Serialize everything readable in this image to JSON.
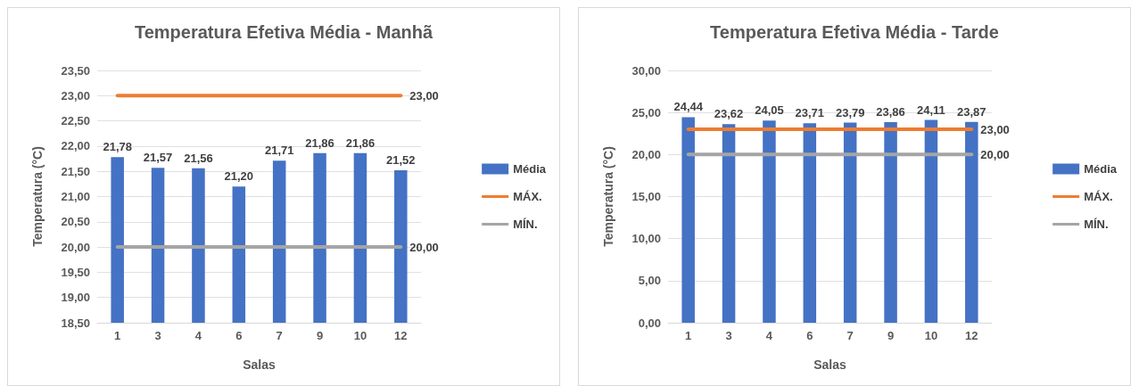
{
  "chart_data": [
    {
      "type": "bar",
      "title": "Temperatura Efetiva Média - Manhã",
      "xlabel": "Salas",
      "ylabel": "Temperatura (°C)",
      "categories": [
        "1",
        "3",
        "4",
        "6",
        "7",
        "9",
        "10",
        "12"
      ],
      "ylim": [
        18.5,
        23.5
      ],
      "yticks": [
        {
          "value": 18.5,
          "label": "18,50"
        },
        {
          "value": 19,
          "label": "19,00"
        },
        {
          "value": 19.5,
          "label": "19,50"
        },
        {
          "value": 20,
          "label": "20,00"
        },
        {
          "value": 20.5,
          "label": "20,50"
        },
        {
          "value": 21,
          "label": "21,00"
        },
        {
          "value": 21.5,
          "label": "21,50"
        },
        {
          "value": 22,
          "label": "22,00"
        },
        {
          "value": 22.5,
          "label": "22,50"
        },
        {
          "value": 23,
          "label": "23,00"
        },
        {
          "value": 23.5,
          "label": "23,50"
        }
      ],
      "grid": "y",
      "legend": "right",
      "series": [
        {
          "name": "Média",
          "color": "#4472c4",
          "values": [
            21.78,
            21.57,
            21.56,
            21.2,
            21.71,
            21.86,
            21.86,
            21.52
          ],
          "value_labels": [
            "21,78",
            "21,57",
            "21,56",
            "21,20",
            "21,71",
            "21,86",
            "21,86",
            "21,52"
          ]
        },
        {
          "name": "MÁX.",
          "type": "line",
          "color": "#ed7d31",
          "values": [
            23,
            23,
            23,
            23,
            23,
            23,
            23,
            23
          ],
          "value_labels": [
            null,
            null,
            null,
            null,
            null,
            null,
            null,
            "23,00"
          ]
        },
        {
          "name": "MÍN.",
          "type": "line",
          "color": "#a5a5a5",
          "values": [
            20,
            20,
            20,
            20,
            20,
            20,
            20,
            20
          ],
          "value_labels": [
            null,
            null,
            null,
            null,
            null,
            null,
            null,
            "20,00"
          ]
        }
      ]
    },
    {
      "type": "bar",
      "title": "Temperatura Efetiva Média - Tarde",
      "xlabel": "Salas",
      "ylabel": "Temperatura (°C)",
      "categories": [
        "1",
        "3",
        "4",
        "6",
        "7",
        "9",
        "10",
        "12"
      ],
      "ylim": [
        0,
        30
      ],
      "yticks": [
        {
          "value": 0,
          "label": "0,00"
        },
        {
          "value": 5,
          "label": "5,00"
        },
        {
          "value": 10,
          "label": "10,00"
        },
        {
          "value": 15,
          "label": "15,00"
        },
        {
          "value": 20,
          "label": "20,00"
        },
        {
          "value": 25,
          "label": "25,00"
        },
        {
          "value": 30,
          "label": "30,00"
        }
      ],
      "grid": "y",
      "legend": "right",
      "series": [
        {
          "name": "Média",
          "color": "#4472c4",
          "values": [
            24.44,
            23.62,
            24.05,
            23.71,
            23.79,
            23.86,
            24.11,
            23.87
          ],
          "value_labels": [
            "24,44",
            "23,62",
            "24,05",
            "23,71",
            "23,79",
            "23,86",
            "24,11",
            "23,87"
          ]
        },
        {
          "name": "MÁX.",
          "type": "line",
          "color": "#ed7d31",
          "values": [
            23,
            23,
            23,
            23,
            23,
            23,
            23,
            23
          ],
          "value_labels": [
            null,
            null,
            null,
            null,
            null,
            null,
            null,
            "23,00"
          ]
        },
        {
          "name": "MÍN.",
          "type": "line",
          "color": "#a5a5a5",
          "values": [
            20,
            20,
            20,
            20,
            20,
            20,
            20,
            20
          ],
          "value_labels": [
            null,
            null,
            null,
            null,
            null,
            null,
            null,
            "20,00"
          ]
        }
      ]
    }
  ]
}
